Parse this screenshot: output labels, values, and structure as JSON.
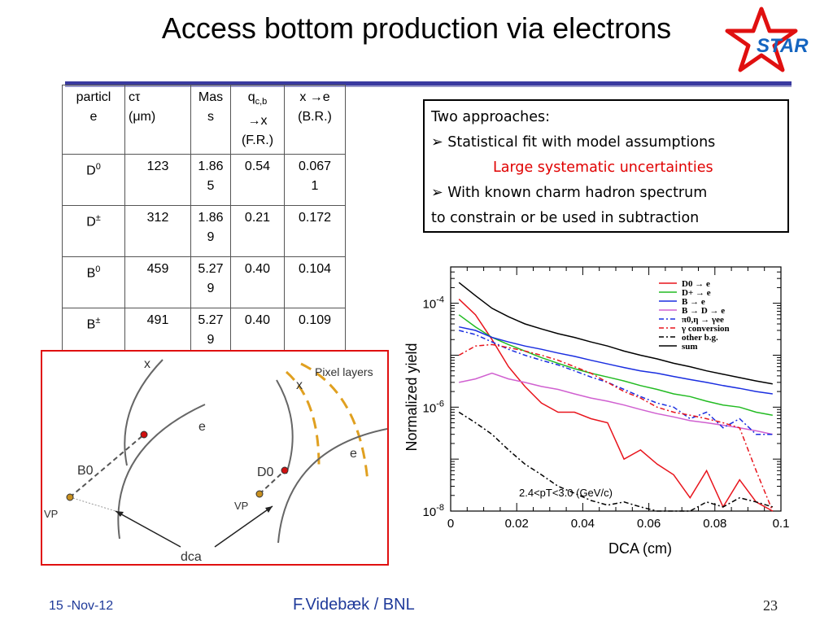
{
  "title": "Access bottom production via electrons",
  "logo_text": "STAR",
  "table": {
    "headers": [
      {
        "lines": [
          "particl",
          "e"
        ]
      },
      {
        "lines": [
          "cτ",
          "(μm)"
        ]
      },
      {
        "lines": [
          "Mas",
          "s"
        ]
      },
      {
        "main": "q",
        "sub": "c,b",
        "lines": [
          "→x",
          "(F.R.)"
        ]
      },
      {
        "lines": [
          "x →e",
          "(B.R.)"
        ]
      }
    ],
    "rows": [
      {
        "name": "D",
        "sup": "0",
        "cells": [
          [
            "123"
          ],
          [
            "1.86",
            "5"
          ],
          [
            "0.54"
          ],
          [
            "0.067",
            "1"
          ]
        ]
      },
      {
        "name": "D",
        "sup": "±",
        "cells": [
          [
            "312"
          ],
          [
            "1.86",
            "9"
          ],
          [
            "0.21"
          ],
          [
            "0.172"
          ]
        ]
      },
      {
        "name": "B",
        "sup": "0",
        "cells": [
          [
            "459"
          ],
          [
            "5.27",
            "9"
          ],
          [
            "0.40"
          ],
          [
            "0.104"
          ]
        ]
      },
      {
        "name": "B",
        "sup": "±",
        "cells": [
          [
            "491"
          ],
          [
            "5.27",
            "9"
          ],
          [
            "0.40"
          ],
          [
            "0.109"
          ]
        ]
      }
    ]
  },
  "approaches": {
    "heading": "Two approaches:",
    "item1": "Statistical fit with model assumptions",
    "item1_note": "Large systematic uncertainties",
    "item2_line1": "With known charm hadron spectrum",
    "item2_line2": "to constrain or be used in subtraction"
  },
  "diagram": {
    "labels": {
      "x_left": "x",
      "e_left": "e",
      "b0": "B0",
      "vp_left": "VP",
      "pixel_layers": "Pixel layers",
      "x_right": "x",
      "e_right": "e",
      "d0": "D0",
      "vp_right": "VP",
      "dca": "dca"
    }
  },
  "chart_data": {
    "type": "line",
    "xlabel": "DCA (cm)",
    "ylabel": "Normalized yield",
    "xlim": [
      0,
      0.1
    ],
    "ylim": [
      1e-08,
      0.0005
    ],
    "log_y": true,
    "x_ticks": [
      "0",
      "0.02",
      "0.04",
      "0.06",
      "0.08",
      "0.1"
    ],
    "y_ticks": [
      {
        "value": 0.0001,
        "base": "10",
        "exp": "-4"
      },
      {
        "value": 1e-06,
        "base": "10",
        "exp": "-6"
      },
      {
        "value": 1e-08,
        "base": "10",
        "exp": "-8"
      }
    ],
    "annotation": "2.4<pT<3.0 (GeV/c)",
    "legend_position": "top-right",
    "x": [
      0.0025,
      0.0075,
      0.0125,
      0.0175,
      0.0225,
      0.0275,
      0.0325,
      0.0375,
      0.0425,
      0.0475,
      0.0525,
      0.0575,
      0.0625,
      0.0675,
      0.0725,
      0.0775,
      0.0825,
      0.0875,
      0.0925,
      0.0975
    ],
    "series": [
      {
        "name": "D0 → e",
        "color": "#e8141c",
        "dash": "",
        "values": [
          0.00012,
          6e-05,
          2e-05,
          6e-06,
          2.5e-06,
          1.2e-06,
          8e-07,
          8e-07,
          6e-07,
          5e-07,
          1e-07,
          1.5e-07,
          8e-08,
          5e-08,
          1.8e-08,
          6e-08,
          1.2e-08,
          4e-08,
          1.5e-08,
          1e-08
        ]
      },
      {
        "name": "D+ → e",
        "color": "#22bb22",
        "dash": "",
        "values": [
          6e-05,
          3.5e-05,
          2.2e-05,
          1.6e-05,
          1.2e-05,
          9e-06,
          7e-06,
          5.5e-06,
          4.5e-06,
          3.8e-06,
          3.2e-06,
          2.6e-06,
          2.2e-06,
          1.8e-06,
          1.6e-06,
          1.3e-06,
          1.1e-06,
          1e-06,
          8e-07,
          7e-07
        ]
      },
      {
        "name": "B → e",
        "color": "#1a2ee0",
        "dash": "",
        "values": [
          3.5e-05,
          3e-05,
          2.2e-05,
          1.8e-05,
          1.5e-05,
          1.3e-05,
          1.1e-05,
          9.5e-06,
          8e-06,
          6.8e-06,
          5.8e-06,
          5e-06,
          4.5e-06,
          3.9e-06,
          3.4e-06,
          3e-06,
          2.6e-06,
          2.3e-06,
          2e-06,
          1.8e-06
        ]
      },
      {
        "name": "B → D → e",
        "color": "#d060d0",
        "dash": "",
        "values": [
          3e-06,
          3.5e-06,
          4.5e-06,
          3.5e-06,
          3e-06,
          2.5e-06,
          2.2e-06,
          1.8e-06,
          1.5e-06,
          1.3e-06,
          1.1e-06,
          9e-07,
          7.5e-07,
          6.5e-07,
          5.5e-07,
          5e-07,
          4.5e-07,
          4e-07,
          3.5e-07,
          3e-07
        ]
      },
      {
        "name": "π0,η → γee",
        "color": "#1a2ee0",
        "dash": "6,3,2,3",
        "values": [
          3e-05,
          2.5e-05,
          1.8e-05,
          1.3e-05,
          1e-05,
          8e-06,
          6.5e-06,
          5e-06,
          3.8e-06,
          3e-06,
          2.2e-06,
          1.6e-06,
          1.2e-06,
          1e-06,
          6e-07,
          8e-07,
          4e-07,
          6e-07,
          3e-07,
          3e-07
        ]
      },
      {
        "name": "γ conversion",
        "color": "#e8141c",
        "dash": "6,3,2,3",
        "values": [
          1e-05,
          1.5e-05,
          1.6e-05,
          1.4e-05,
          1.2e-05,
          1e-05,
          8e-06,
          6e-06,
          4.5e-06,
          3e-06,
          2e-06,
          1.5e-06,
          1e-06,
          8e-07,
          7e-07,
          6e-07,
          5e-07,
          4e-07,
          6e-08,
          1e-08
        ]
      },
      {
        "name": "other b.g.",
        "color": "#000000",
        "dash": "6,3,2,3",
        "values": [
          8e-07,
          5e-07,
          3e-07,
          1.5e-07,
          8e-08,
          5e-08,
          3e-08,
          2.2e-08,
          1.6e-08,
          1.3e-08,
          1.5e-08,
          1.2e-08,
          1e-08,
          8e-09,
          1e-08,
          1.5e-08,
          1.2e-08,
          1.8e-08,
          1.5e-08,
          1.2e-08
        ]
      },
      {
        "name": "sum",
        "color": "#000000",
        "dash": "",
        "values": [
          0.00025,
          0.00014,
          8e-05,
          5.5e-05,
          4e-05,
          3.2e-05,
          2.6e-05,
          2.2e-05,
          1.8e-05,
          1.5e-05,
          1.2e-05,
          1e-05,
          8.5e-06,
          7e-06,
          6e-06,
          5e-06,
          4.3e-06,
          3.7e-06,
          3.2e-06,
          2.8e-06
        ]
      }
    ]
  },
  "footer": {
    "date": "15 -Nov-12",
    "author": "F.Videbæk / BNL",
    "page": "23"
  }
}
